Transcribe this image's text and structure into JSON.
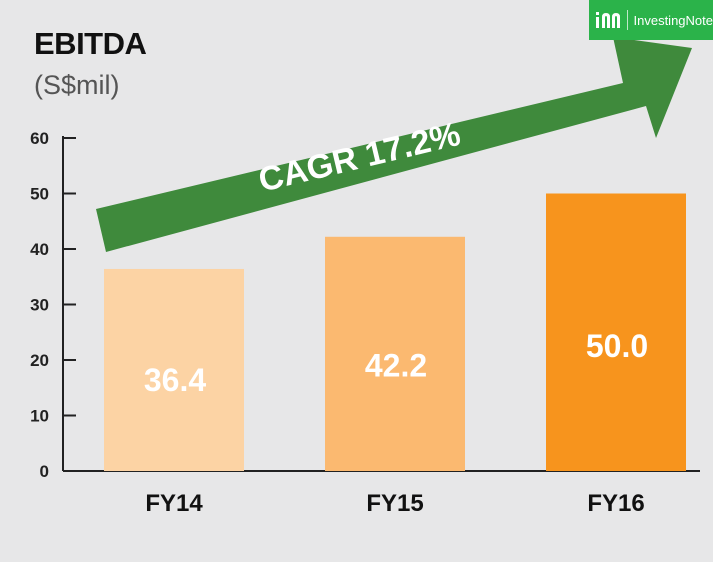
{
  "chart_data": {
    "type": "bar",
    "title": "EBITDA",
    "subtitle": "(S$mil)",
    "categories": [
      "FY14",
      "FY15",
      "FY16"
    ],
    "values": [
      36.4,
      42.2,
      50.0
    ],
    "value_labels": [
      "36.4",
      "42.2",
      "50.0"
    ],
    "bar_colors": [
      "#fcd3a4",
      "#fbb970",
      "#f7941d"
    ],
    "ylim": [
      0,
      60
    ],
    "yticks": [
      0,
      10,
      20,
      30,
      40,
      50,
      60
    ],
    "grid": false,
    "annotation": "CAGR 17.2%",
    "annotation_color": "#3f8a3c"
  },
  "watermark": {
    "text": "InvestingNote",
    "color": "#2bb34a",
    "icon": "investingnote-logo-icon"
  }
}
